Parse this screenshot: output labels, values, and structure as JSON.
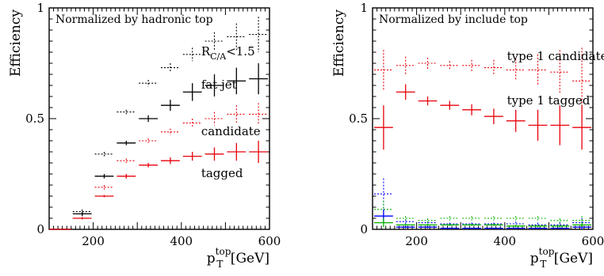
{
  "chart_data": [
    {
      "type": "scatter",
      "subtitle": "Normalized by hadronic top",
      "xlabel_main": "p",
      "xlabel_sub": "T",
      "xlabel_sup": "top",
      "xlabel_unit": "[GeV]",
      "ylabel": "Efficiency",
      "xlim": [
        100,
        600
      ],
      "ylim": [
        0,
        1
      ],
      "x_ticks": [
        200,
        400,
        600
      ],
      "y_ticks": [
        {
          "v": 0,
          "label": "0"
        },
        {
          "v": 0.5,
          "label": "0.5"
        },
        {
          "v": 1,
          "label": "1"
        }
      ],
      "grid": false,
      "bin_edges": [
        100,
        150,
        200,
        250,
        300,
        350,
        400,
        450,
        500,
        550,
        600
      ],
      "series": [
        {
          "name": "R_C/A<1.5",
          "label_main": "R",
          "label_sub": "C/A",
          "label_rest": "<1.5",
          "color": "#000000",
          "dashed": true,
          "values": [
            0,
            0.08,
            0.34,
            0.53,
            0.66,
            0.73,
            0.79,
            0.85,
            0.87,
            0.88
          ],
          "errors": [
            0,
            0.01,
            0.01,
            0.01,
            0.015,
            0.02,
            0.03,
            0.04,
            0.06,
            0.08
          ]
        },
        {
          "name": "fat jet",
          "color": "#000000",
          "dashed": false,
          "values": [
            0,
            0.07,
            0.24,
            0.39,
            0.5,
            0.56,
            0.62,
            0.65,
            0.67,
            0.68
          ],
          "errors": [
            0,
            0.01,
            0.01,
            0.01,
            0.015,
            0.025,
            0.04,
            0.05,
            0.06,
            0.07
          ]
        },
        {
          "name": "candidate",
          "color": "#e8000b",
          "dashed": true,
          "values": [
            0,
            0.05,
            0.19,
            0.31,
            0.4,
            0.44,
            0.48,
            0.5,
            0.52,
            0.52
          ],
          "errors": [
            0,
            0.005,
            0.01,
            0.01,
            0.01,
            0.015,
            0.02,
            0.03,
            0.04,
            0.05
          ]
        },
        {
          "name": "tagged",
          "color": "#e8000b",
          "dashed": false,
          "values": [
            0,
            0.05,
            0.15,
            0.24,
            0.29,
            0.31,
            0.33,
            0.34,
            0.35,
            0.35
          ],
          "errors": [
            0,
            0.005,
            0.005,
            0.01,
            0.01,
            0.015,
            0.02,
            0.03,
            0.04,
            0.05
          ]
        }
      ],
      "labels": [
        {
          "series": 0,
          "x": 0.69,
          "y": 0.785
        },
        {
          "series": 1,
          "x": 0.69,
          "y": 0.635
        },
        {
          "series": 2,
          "x": 0.69,
          "y": 0.425
        },
        {
          "series": 3,
          "x": 0.69,
          "y": 0.235
        }
      ]
    },
    {
      "type": "scatter",
      "subtitle": "Normalized by include top",
      "xlabel_main": "p",
      "xlabel_sub": "T",
      "xlabel_sup": "top",
      "xlabel_unit": "[GeV]",
      "ylabel": "Efficiency",
      "xlim": [
        100,
        600
      ],
      "ylim": [
        0,
        1
      ],
      "x_ticks": [
        200,
        400,
        600
      ],
      "y_ticks": [
        {
          "v": 0,
          "label": "0"
        },
        {
          "v": 0.5,
          "label": "0.5"
        },
        {
          "v": 1,
          "label": "1"
        }
      ],
      "grid": false,
      "bin_edges": [
        100,
        150,
        200,
        250,
        300,
        350,
        400,
        450,
        500,
        550,
        600
      ],
      "series": [
        {
          "name": "type 1 candidate",
          "color": "#e8000b",
          "dashed": true,
          "values": [
            0.72,
            0.74,
            0.75,
            0.74,
            0.74,
            0.73,
            0.72,
            0.72,
            0.71,
            0.67
          ],
          "errors": [
            0.09,
            0.04,
            0.025,
            0.02,
            0.025,
            0.035,
            0.05,
            0.07,
            0.1,
            0.15
          ]
        },
        {
          "name": "type 1 tagged",
          "color": "#e8000b",
          "dashed": false,
          "values": [
            0.46,
            0.62,
            0.58,
            0.56,
            0.54,
            0.51,
            0.49,
            0.47,
            0.47,
            0.46
          ],
          "errors": [
            0.1,
            0.035,
            0.02,
            0.02,
            0.025,
            0.035,
            0.05,
            0.07,
            0.09,
            0.1
          ]
        },
        {
          "name": "",
          "color": "#0000ff",
          "dashed": true,
          "values": [
            0.16,
            0.035,
            0.03,
            0.025,
            0.025,
            0.025,
            0.025,
            0.02,
            0.02,
            0.03
          ],
          "errors": [
            0.07,
            0.01,
            0.005,
            0.005,
            0.005,
            0.005,
            0.01,
            0.01,
            0.01,
            0.02
          ]
        },
        {
          "name": "",
          "color": "#00b000",
          "dashed": true,
          "values": [
            0.09,
            0.05,
            0.04,
            0.05,
            0.05,
            0.05,
            0.05,
            0.05,
            0.04,
            0.04
          ],
          "errors": [
            0.04,
            0.01,
            0.01,
            0.01,
            0.01,
            0.01,
            0.01,
            0.01,
            0.01,
            0.02
          ]
        },
        {
          "name": "",
          "color": "#0000ff",
          "dashed": false,
          "values": [
            0.06,
            0.01,
            0.01,
            0.005,
            0.005,
            0.005,
            0.005,
            0.005,
            0.005,
            0.01
          ],
          "errors": [
            0.03,
            0.005,
            0.005,
            0.003,
            0.003,
            0.003,
            0.003,
            0.003,
            0.003,
            0.01
          ]
        },
        {
          "name": "",
          "color": "#00b000",
          "dashed": false,
          "values": [
            0.03,
            0.02,
            0.02,
            0.02,
            0.02,
            0.02,
            0.015,
            0.015,
            0.015,
            0.02
          ],
          "errors": [
            0.02,
            0.005,
            0.005,
            0.005,
            0.005,
            0.005,
            0.005,
            0.005,
            0.005,
            0.01
          ]
        }
      ],
      "labels": [
        {
          "series": 0,
          "x": 0.61,
          "y": 0.765
        },
        {
          "series": 1,
          "x": 0.61,
          "y": 0.565
        }
      ]
    }
  ]
}
